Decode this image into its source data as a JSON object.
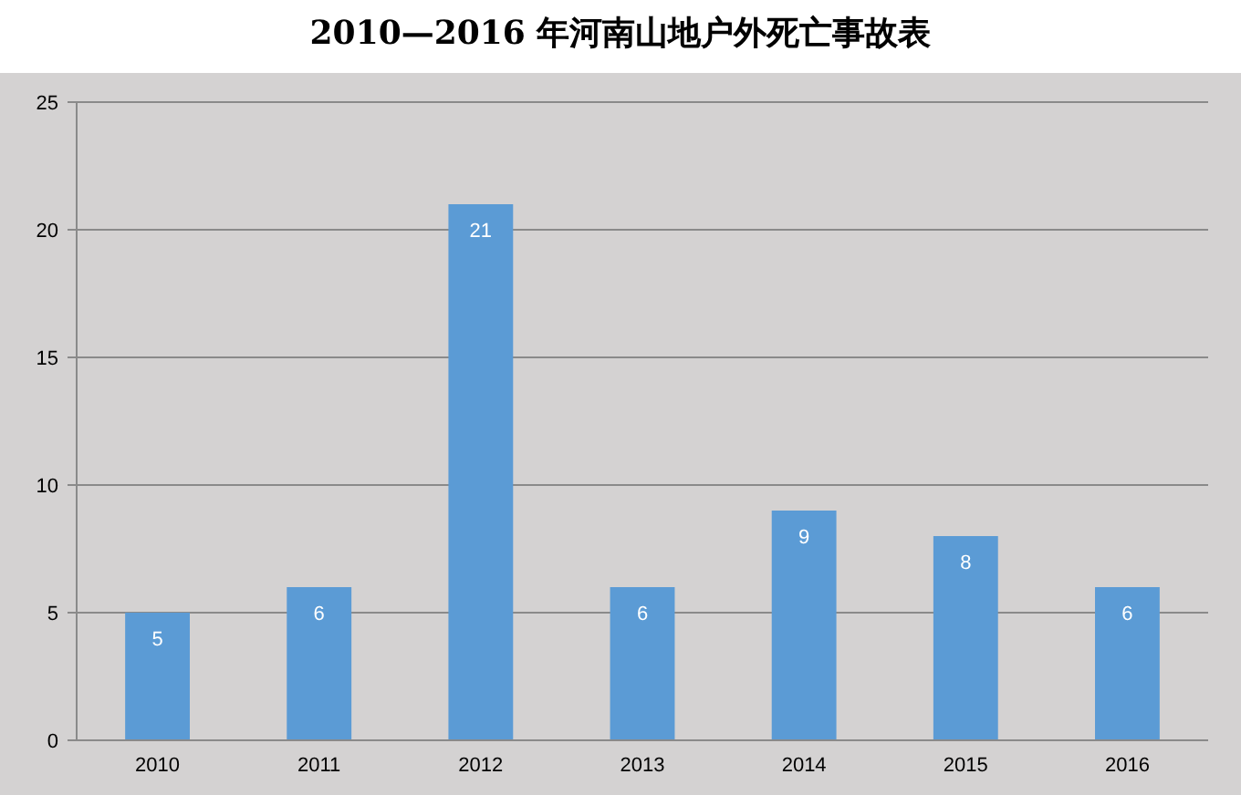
{
  "chart_data": {
    "type": "bar",
    "title": "2010—2016 年河南山地户外死亡事故表",
    "categories": [
      "2010",
      "2011",
      "2012",
      "2013",
      "2014",
      "2015",
      "2016"
    ],
    "values": [
      5,
      6,
      21,
      6,
      9,
      8,
      6
    ],
    "color": "#5b9bd5",
    "ylim": [
      0,
      25
    ],
    "yticks": [
      0,
      5,
      10,
      15,
      20,
      25
    ],
    "grid": "y",
    "data_labels": true
  }
}
